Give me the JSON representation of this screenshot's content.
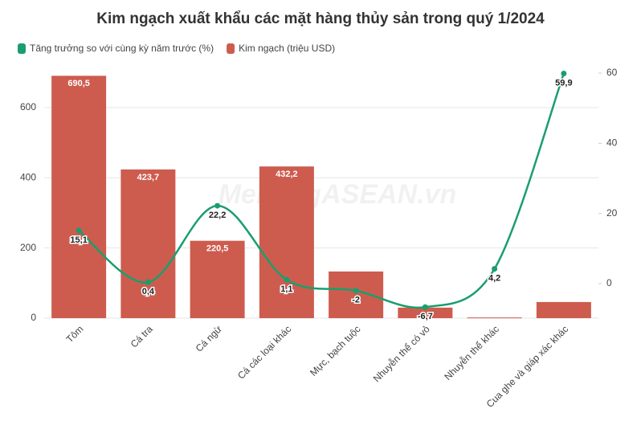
{
  "chart_data": {
    "type": "bar-line",
    "title": "Kim ngạch xuất khẩu các mặt hàng thủy sản trong quý 1/2024",
    "watermark": "MekongASEAN.vn",
    "categories": [
      "Tôm",
      "Cá tra",
      "Cá ngừ",
      "Cá các loại khác",
      "Mực, bạch tuộc",
      "Nhuyễn thể có vỏ",
      "Nhuyễn thể khác",
      "Cua ghe và giáp xác khác"
    ],
    "series": [
      {
        "name": "Tăng trưởng so với cùng kỳ năm trước (%)",
        "type": "line",
        "axis": "y2",
        "color": "#1a9e6e",
        "values": [
          15.1,
          0.4,
          22.2,
          1.1,
          -2,
          -6.7,
          4.2,
          59.9
        ],
        "value_labels": [
          "15,1",
          "0,4",
          "22,2",
          "1,1",
          "-2",
          "-6,7",
          "4,2",
          "59,9"
        ]
      },
      {
        "name": "Kim ngạch (triệu USD)",
        "type": "bar",
        "color": "#cd5c4e",
        "values": [
          690.5,
          423.7,
          220.5,
          432.2,
          133,
          30,
          2,
          46
        ],
        "value_labels": [
          "690,5",
          "423,7",
          "220,5",
          "432,2",
          null,
          null,
          null,
          null
        ]
      }
    ],
    "ylim": [
      0,
      705
    ],
    "yticks": [
      0,
      200,
      400,
      600
    ],
    "y2lim": [
      -9.85,
      60.7
    ],
    "y2ticks": [
      0,
      20,
      40,
      60
    ],
    "grid": true
  }
}
